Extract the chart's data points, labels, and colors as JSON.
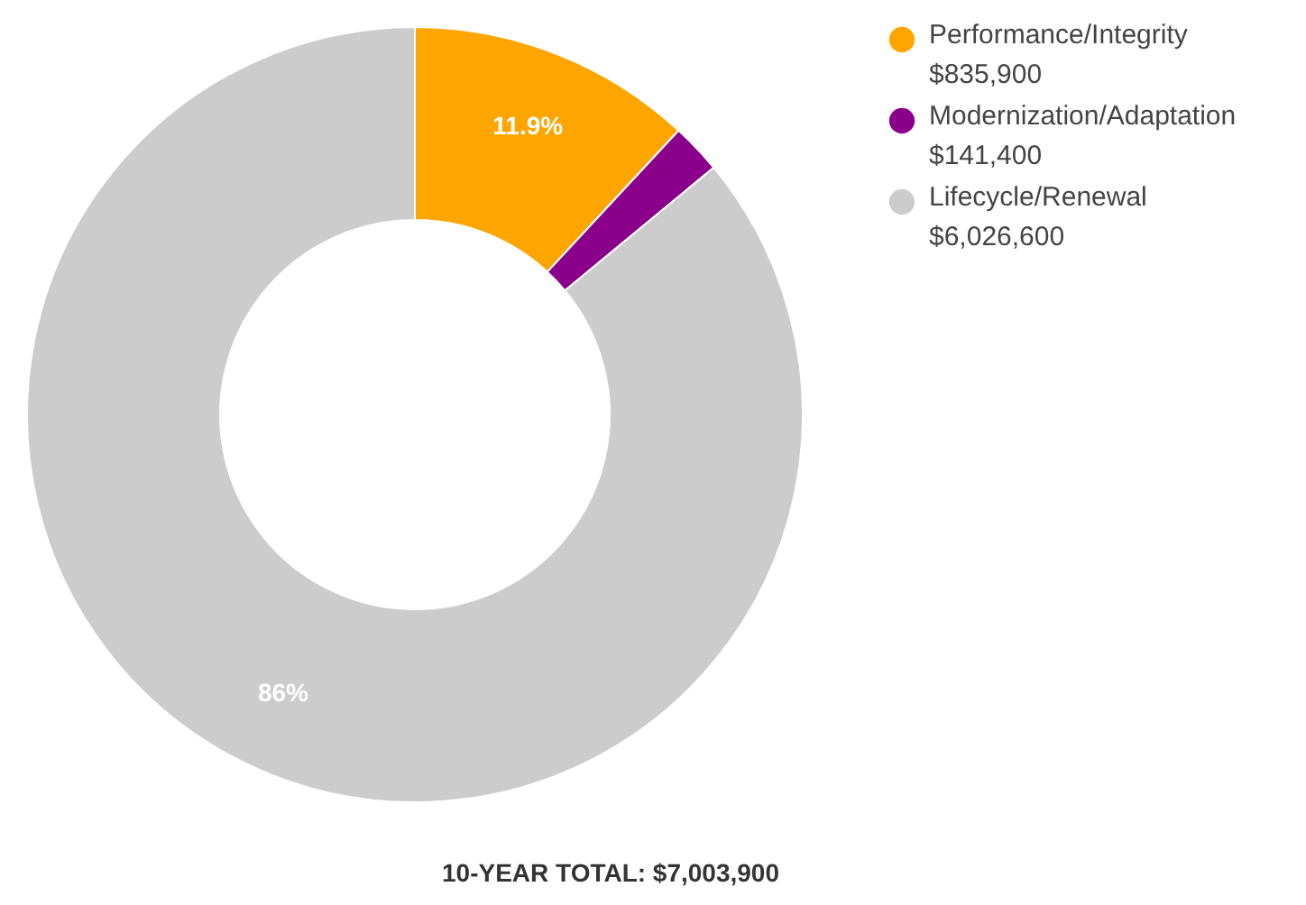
{
  "chart_data": {
    "type": "donut",
    "title": "10-YEAR TOTAL: $7,003,900",
    "categories": [
      "Performance/Integrity\n$835,900",
      "Modernization/Adaptation\n$141,400",
      "Lifecycle/Renewal\n$6,026,600"
    ],
    "values": [
      11.9,
      2.1,
      86
    ],
    "colors": [
      "#ffa500",
      "#8b008b",
      "#cccccc"
    ],
    "value_labels": [
      "11.9%",
      null,
      "86%"
    ],
    "legend": "top right"
  }
}
